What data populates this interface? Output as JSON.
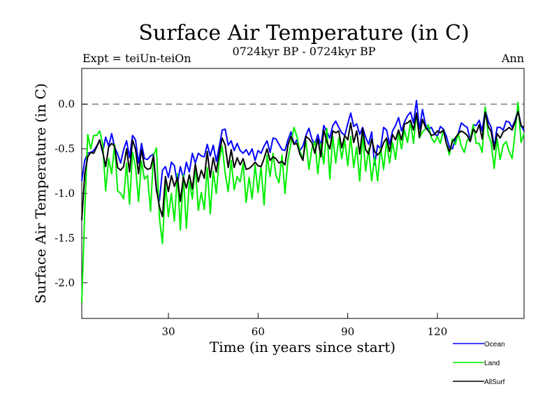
{
  "title": "Surface Air Temperature (in C)",
  "subtitle": "0724kyr BP - 0724kyr BP",
  "expt_label": "Expt = teiUn-teiOn",
  "season_label": "Ann",
  "chart_data": {
    "type": "line",
    "xlabel": "Time (in years since start)",
    "ylabel": "Surface Air Temperature (in C)",
    "xlim": [
      1,
      149
    ],
    "ylim": [
      -2.4,
      0.4
    ],
    "xticks": [
      30,
      60,
      90,
      120
    ],
    "yticks": [
      -2.0,
      -1.5,
      -1.0,
      -0.5,
      0.0
    ],
    "ytick_labels": [
      "-2.0",
      "-1.5",
      "-1.0",
      "-0.5",
      "0.0"
    ],
    "reference_line": 0.0,
    "legend": [
      "Ocean",
      "Land",
      "AllSurf"
    ],
    "series": [
      {
        "name": "Ocean",
        "color": "#0000ff",
        "values": [
          -0.86,
          -0.63,
          -0.55,
          -0.54,
          -0.52,
          -0.47,
          -0.4,
          -0.54,
          -0.37,
          -0.47,
          -0.33,
          -0.48,
          -0.56,
          -0.66,
          -0.51,
          -0.41,
          -0.6,
          -0.35,
          -0.4,
          -0.66,
          -0.44,
          -0.61,
          -0.62,
          -0.58,
          -0.56,
          -0.97,
          -1.08,
          -0.74,
          -0.7,
          -0.82,
          -0.65,
          -0.69,
          -0.89,
          -0.7,
          -0.83,
          -0.65,
          -0.76,
          -0.55,
          -0.66,
          -0.55,
          -0.58,
          -0.59,
          -0.45,
          -0.58,
          -0.46,
          -0.64,
          -0.48,
          -0.29,
          -0.28,
          -0.46,
          -0.41,
          -0.52,
          -0.44,
          -0.52,
          -0.55,
          -0.51,
          -0.57,
          -0.5,
          -0.63,
          -0.52,
          -0.55,
          -0.47,
          -0.41,
          -0.54,
          -0.38,
          -0.39,
          -0.45,
          -0.51,
          -0.52,
          -0.4,
          -0.31,
          -0.45,
          -0.4,
          -0.52,
          -0.47,
          -0.35,
          -0.27,
          -0.39,
          -0.45,
          -0.34,
          -0.47,
          -0.24,
          -0.31,
          -0.38,
          -0.24,
          -0.19,
          -0.26,
          -0.32,
          -0.35,
          -0.22,
          -0.1,
          -0.25,
          -0.22,
          -0.34,
          -0.26,
          -0.37,
          -0.45,
          -0.31,
          -0.68,
          -0.46,
          -0.5,
          -0.26,
          -0.29,
          -0.45,
          -0.3,
          -0.24,
          -0.15,
          -0.3,
          -0.2,
          -0.13,
          -0.09,
          -0.21,
          0.04,
          -0.28,
          -0.06,
          -0.23,
          -0.28,
          -0.26,
          -0.33,
          -0.36,
          -0.25,
          -0.28,
          -0.36,
          -0.48,
          -0.5,
          -0.4,
          -0.33,
          -0.21,
          -0.24,
          -0.26,
          -0.4,
          -0.23,
          -0.24,
          -0.18,
          -0.3,
          -0.06,
          -0.19,
          -0.26,
          -0.48,
          -0.26,
          -0.26,
          -0.29,
          -0.19,
          -0.2,
          -0.26,
          -0.18,
          -0.06,
          -0.24,
          -0.3
        ]
      },
      {
        "name": "Land",
        "color": "#00ee00",
        "values": [
          -2.22,
          -1.2,
          -0.34,
          -0.5,
          -0.35,
          -0.35,
          -0.3,
          -0.44,
          -0.97,
          -0.61,
          -0.78,
          -0.45,
          -0.97,
          -1.0,
          -1.06,
          -0.66,
          -1.12,
          -0.54,
          -0.7,
          -1.09,
          -0.64,
          -0.84,
          -0.8,
          -1.2,
          -0.58,
          -0.49,
          -1.28,
          -1.56,
          -0.89,
          -1.26,
          -1.0,
          -1.31,
          -0.78,
          -1.41,
          -0.79,
          -1.39,
          -0.87,
          -1.06,
          -0.69,
          -1.19,
          -0.99,
          -1.18,
          -0.71,
          -1.23,
          -0.75,
          -1.0,
          -0.63,
          -0.47,
          -0.78,
          -0.98,
          -0.63,
          -0.96,
          -0.81,
          -0.87,
          -0.66,
          -1.1,
          -0.82,
          -1.06,
          -0.68,
          -0.99,
          -0.7,
          -1.13,
          -0.57,
          -0.81,
          -0.55,
          -0.8,
          -0.88,
          -0.57,
          -1.0,
          -0.62,
          -0.44,
          -0.26,
          -0.36,
          -0.53,
          -0.61,
          -0.41,
          -0.73,
          -0.5,
          -0.42,
          -0.78,
          -0.44,
          -0.67,
          -0.27,
          -0.84,
          -0.36,
          -0.66,
          -0.38,
          -0.61,
          -0.4,
          -0.69,
          -0.36,
          -0.71,
          -0.48,
          -0.86,
          -0.34,
          -0.75,
          -0.5,
          -0.86,
          -0.59,
          -0.86,
          -0.49,
          -0.73,
          -0.41,
          -0.66,
          -0.43,
          -0.62,
          -0.32,
          -0.5,
          -0.29,
          -0.43,
          -0.2,
          -0.44,
          -0.1,
          -0.38,
          -0.31,
          -0.28,
          -0.23,
          -0.38,
          -0.43,
          -0.36,
          -0.44,
          -0.29,
          -0.44,
          -0.57,
          -0.39,
          -0.45,
          -0.33,
          -0.47,
          -0.54,
          -0.4,
          -0.4,
          -0.23,
          -0.44,
          -0.44,
          -0.54,
          -0.03,
          -0.34,
          -0.43,
          -0.72,
          -0.39,
          -0.62,
          -0.46,
          -0.42,
          -0.53,
          -0.61,
          -0.31,
          0.02,
          -0.43,
          -0.33
        ]
      },
      {
        "name": "AllSurf",
        "color": "#000000",
        "values": [
          -1.3,
          -0.78,
          -0.59,
          -0.54,
          -0.55,
          -0.48,
          -0.4,
          -0.53,
          -0.7,
          -0.48,
          -0.44,
          -0.47,
          -0.71,
          -0.74,
          -0.7,
          -0.5,
          -0.76,
          -0.4,
          -0.51,
          -0.78,
          -0.51,
          -0.7,
          -0.73,
          -0.72,
          -0.58,
          -0.95,
          -1.15,
          -1.26,
          -0.81,
          -0.98,
          -0.8,
          -0.92,
          -0.82,
          -1.09,
          -0.82,
          -0.94,
          -0.79,
          -0.95,
          -0.67,
          -0.87,
          -0.74,
          -0.83,
          -0.53,
          -0.82,
          -0.6,
          -0.76,
          -0.55,
          -0.38,
          -0.46,
          -0.71,
          -0.51,
          -0.71,
          -0.6,
          -0.68,
          -0.61,
          -0.73,
          -0.72,
          -0.69,
          -0.65,
          -0.69,
          -0.7,
          -0.61,
          -0.5,
          -0.63,
          -0.59,
          -0.61,
          -0.66,
          -0.64,
          -0.68,
          -0.46,
          -0.36,
          -0.45,
          -0.44,
          -0.56,
          -0.63,
          -0.36,
          -0.39,
          -0.43,
          -0.55,
          -0.39,
          -0.59,
          -0.29,
          -0.42,
          -0.5,
          -0.3,
          -0.32,
          -0.3,
          -0.49,
          -0.35,
          -0.4,
          -0.21,
          -0.43,
          -0.3,
          -0.56,
          -0.27,
          -0.51,
          -0.56,
          -0.39,
          -0.53,
          -0.57,
          -0.53,
          -0.43,
          -0.38,
          -0.53,
          -0.34,
          -0.4,
          -0.29,
          -0.4,
          -0.22,
          -0.21,
          -0.18,
          -0.29,
          -0.1,
          -0.37,
          -0.17,
          -0.26,
          -0.3,
          -0.35,
          -0.34,
          -0.3,
          -0.32,
          -0.29,
          -0.44,
          -0.53,
          -0.42,
          -0.38,
          -0.33,
          -0.3,
          -0.32,
          -0.35,
          -0.42,
          -0.28,
          -0.32,
          -0.23,
          -0.39,
          -0.09,
          -0.25,
          -0.31,
          -0.51,
          -0.33,
          -0.38,
          -0.31,
          -0.29,
          -0.26,
          -0.29,
          -0.2,
          -0.08,
          -0.24,
          -0.26
        ]
      }
    ]
  }
}
